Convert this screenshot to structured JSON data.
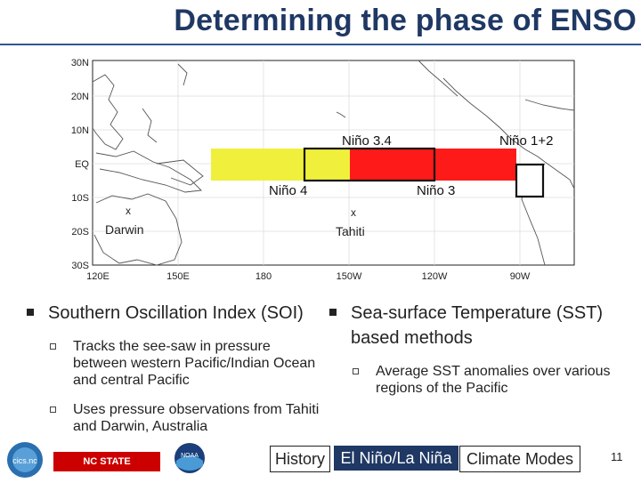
{
  "title": "Determining the phase of ENSO",
  "map": {
    "lat_labels": [
      "30N",
      "20N",
      "10N",
      "EQ",
      "10S",
      "20S",
      "30S"
    ],
    "lon_labels": [
      "120E",
      "150E",
      "180",
      "150W",
      "120W",
      "90W"
    ],
    "regions": {
      "nino34": "Niño 3.4",
      "nino12": "Niño 1+2",
      "nino4": "Niño 4",
      "nino3": "Niño 3"
    },
    "stations": {
      "darwin": "Darwin",
      "tahiti": "Tahiti",
      "marker": "x"
    },
    "colors": {
      "yellow": "#f0f03c",
      "red": "#ff1a1a",
      "box": "#111111"
    }
  },
  "left": {
    "heading": "Southern Oscillation Index (SOI)",
    "items": [
      "Tracks the see-saw in pressure between western Pacific/Indian Ocean and central Pacific",
      "Uses pressure observations from Tahiti and Darwin, Australia"
    ]
  },
  "right": {
    "heading": "Sea-surface Temperature (SST) based methods",
    "items": [
      "Average SST anomalies over various regions of the Pacific"
    ]
  },
  "footer": {
    "history": "History",
    "nino_nina": "El Niño/La Niña",
    "climate_modes": "Climate Modes",
    "page_number": "11",
    "ncsu": "NC STATE UNIVERSITY",
    "cics": "cics.nc",
    "noaa": "NOAA"
  }
}
